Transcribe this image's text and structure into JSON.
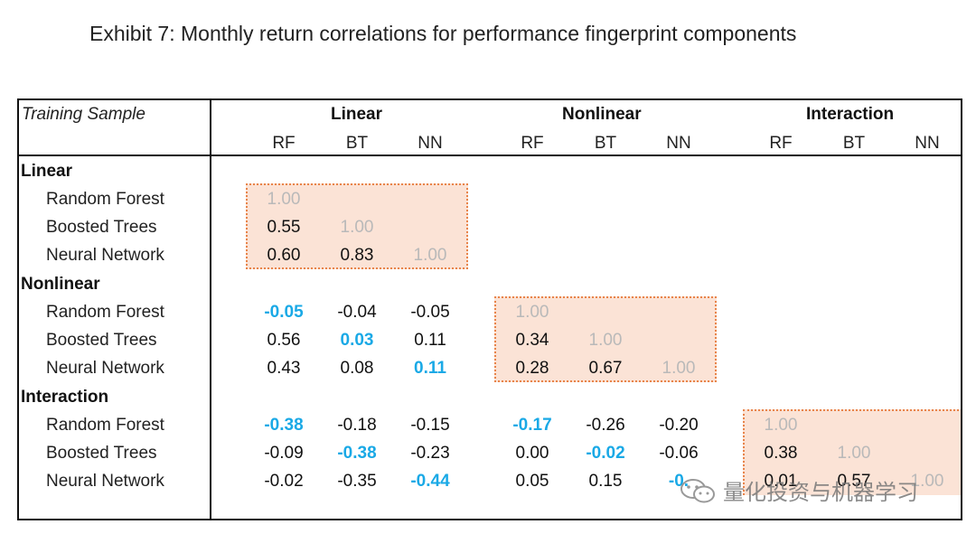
{
  "title": "Exhibit 7: Monthly return correlations for performance fingerprint components",
  "table": {
    "corner_label": "Training Sample",
    "groups": [
      "Linear",
      "Nonlinear",
      "Interaction"
    ],
    "subheaders": [
      "RF",
      "BT",
      "NN",
      "RF",
      "BT",
      "NN",
      "RF",
      "BT",
      "NN"
    ],
    "sections": [
      {
        "name": "Linear",
        "rows": [
          {
            "label": "Random Forest",
            "values": [
              "1.00",
              "",
              "",
              "",
              "",
              "",
              "",
              "",
              ""
            ]
          },
          {
            "label": "Boosted Trees",
            "values": [
              "0.55",
              "1.00",
              "",
              "",
              "",
              "",
              "",
              "",
              ""
            ]
          },
          {
            "label": "Neural Network",
            "values": [
              "0.60",
              "0.83",
              "1.00",
              "",
              "",
              "",
              "",
              "",
              ""
            ]
          }
        ]
      },
      {
        "name": "Nonlinear",
        "rows": [
          {
            "label": "Random Forest",
            "values": [
              "-0.05",
              "-0.04",
              "-0.05",
              "1.00",
              "",
              "",
              "",
              "",
              ""
            ]
          },
          {
            "label": "Boosted Trees",
            "values": [
              "0.56",
              "0.03",
              "0.11",
              "0.34",
              "1.00",
              "",
              "",
              "",
              ""
            ]
          },
          {
            "label": "Neural Network",
            "values": [
              "0.43",
              "0.08",
              "0.11",
              "0.28",
              "0.67",
              "1.00",
              "",
              "",
              ""
            ]
          }
        ]
      },
      {
        "name": "Interaction",
        "rows": [
          {
            "label": "Random Forest",
            "values": [
              "-0.38",
              "-0.18",
              "-0.15",
              "-0.17",
              "-0.26",
              "-0.20",
              "1.00",
              "",
              ""
            ]
          },
          {
            "label": "Boosted Trees",
            "values": [
              "-0.09",
              "-0.38",
              "-0.23",
              "0.00",
              "-0.02",
              "-0.06",
              "0.38",
              "1.00",
              ""
            ]
          },
          {
            "label": "Neural Network",
            "values": [
              "-0.02",
              "-0.35",
              "-0.44",
              "0.05",
              "0.15",
              "-0.",
              "0.01",
              "0.57",
              "1.00"
            ]
          }
        ]
      }
    ],
    "highlight_color": "#1aa9e6",
    "diagonal_color": "#b9b9b9",
    "box_fill": "#fbe3d6",
    "box_border": "#e8844a"
  },
  "watermark": {
    "text": "量化投资与机器学习",
    "icon": "wechat-icon"
  }
}
